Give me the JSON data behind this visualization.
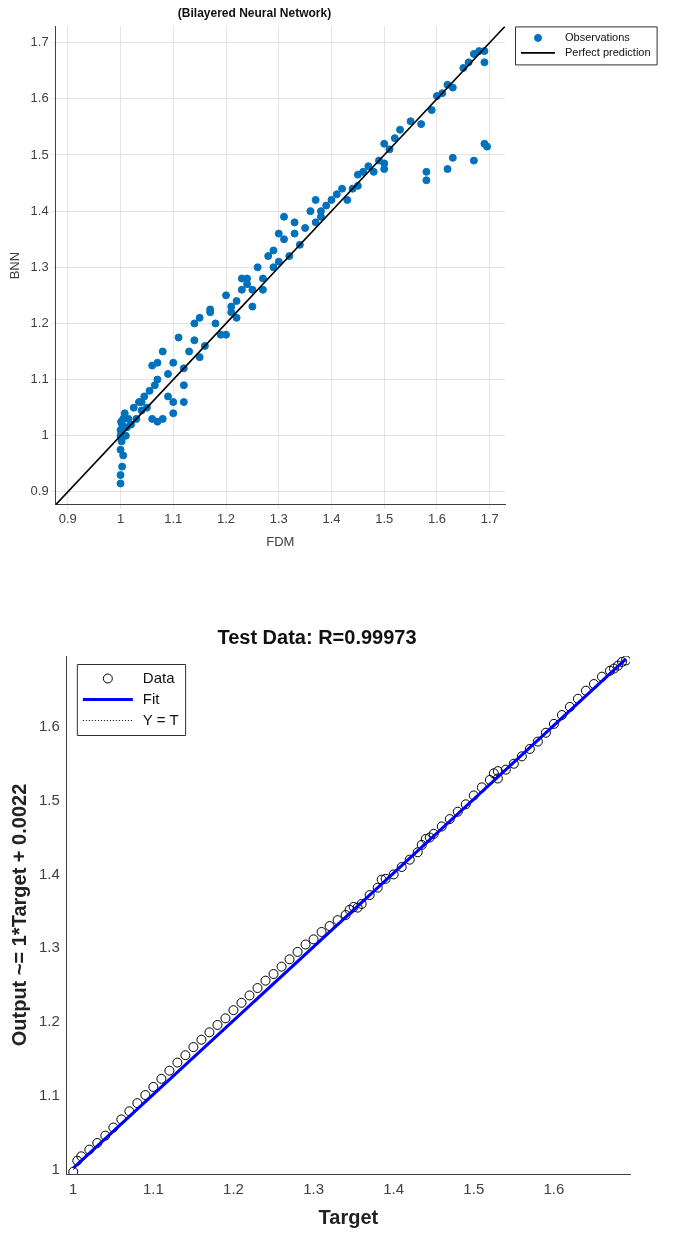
{
  "chart_data": [
    {
      "type": "scatter",
      "title": "(Bilayered Neural Network)",
      "xlabel": "FDM",
      "ylabel": "BNN",
      "xlim": [
        0.877,
        1.729
      ],
      "ylim": [
        0.877,
        1.729
      ],
      "xticks": [
        0.9,
        1,
        1.1,
        1.2,
        1.3,
        1.4,
        1.5,
        1.6,
        1.7
      ],
      "yticks": [
        0.9,
        1,
        1.1,
        1.2,
        1.3,
        1.4,
        1.5,
        1.6,
        1.7
      ],
      "grid": true,
      "legend": "top right",
      "series": [
        {
          "name": "Observations",
          "type": "scatter",
          "marker": "circle",
          "color": "#0072bd",
          "x": [
            1.0,
            1.0,
            1.003,
            1.005,
            1.0,
            1.002,
            1.0,
            1.001,
            1.003,
            1.0,
            1.005,
            1.01,
            1.008,
            1.012,
            1.015,
            1.02,
            1.025,
            1.03,
            1.035,
            1.04,
            1.045,
            1.05,
            1.055,
            1.06,
            1.065,
            1.07,
            1.06,
            1.07,
            1.08,
            1.07,
            1.08,
            1.09,
            1.1,
            1.1,
            1.11,
            1.12,
            1.13,
            1.12,
            1.14,
            1.15,
            1.16,
            1.17,
            1.18,
            1.14,
            1.15,
            1.17,
            1.19,
            1.2,
            1.21,
            1.2,
            1.22,
            1.23,
            1.24,
            1.25,
            1.22,
            1.23,
            1.25,
            1.26,
            1.27,
            1.28,
            1.29,
            1.3,
            1.27,
            1.3,
            1.31,
            1.32,
            1.33,
            1.34,
            1.31,
            1.33,
            1.35,
            1.36,
            1.37,
            1.38,
            1.37,
            1.38,
            1.39,
            1.4,
            1.41,
            1.42,
            1.43,
            1.44,
            1.45,
            1.45,
            1.46,
            1.47,
            1.48,
            1.49,
            1.5,
            1.5,
            1.5,
            1.51,
            1.52,
            1.53,
            1.55,
            1.57,
            1.58,
            1.58,
            1.59,
            1.6,
            1.61,
            1.62,
            1.62,
            1.63,
            1.63,
            1.65,
            1.66,
            1.67,
            1.67,
            1.68,
            1.69,
            1.69,
            1.69,
            1.695,
            1.1,
            1.12,
            1.04,
            1.09,
            1.29,
            1.24,
            1.21
          ],
          "values": [
            0.915,
            0.93,
            0.945,
            0.965,
            0.975,
            0.99,
            1.01,
            1.025,
            1.02,
            1.0,
            1.03,
            1.0,
            1.04,
            1.015,
            1.03,
            1.02,
            1.05,
            1.03,
            1.06,
            1.045,
            1.07,
            1.05,
            1.08,
            1.125,
            1.09,
            1.13,
            1.03,
            1.025,
            1.03,
            1.1,
            1.15,
            1.11,
            1.04,
            1.13,
            1.175,
            1.06,
            1.15,
            1.12,
            1.2,
            1.21,
            1.16,
            1.225,
            1.2,
            1.17,
            1.14,
            1.22,
            1.18,
            1.25,
            1.22,
            1.18,
            1.21,
            1.26,
            1.27,
            1.26,
            1.24,
            1.28,
            1.23,
            1.3,
            1.28,
            1.32,
            1.33,
            1.31,
            1.26,
            1.36,
            1.35,
            1.32,
            1.36,
            1.34,
            1.39,
            1.38,
            1.37,
            1.4,
            1.38,
            1.39,
            1.42,
            1.4,
            1.41,
            1.42,
            1.43,
            1.44,
            1.42,
            1.44,
            1.465,
            1.445,
            1.47,
            1.48,
            1.47,
            1.49,
            1.475,
            1.485,
            1.52,
            1.51,
            1.53,
            1.545,
            1.56,
            1.555,
            1.47,
            1.455,
            1.58,
            1.605,
            1.61,
            1.475,
            1.625,
            1.495,
            1.62,
            1.655,
            1.665,
            1.68,
            1.49,
            1.685,
            1.52,
            1.665,
            1.685,
            1.515,
            1.06,
            1.09,
            1.06,
            1.07,
            1.3,
            1.28,
            1.23
          ]
        },
        {
          "name": "Perfect prediction",
          "type": "line",
          "marker": "none",
          "line_style": "solid",
          "color": "#000000",
          "x": [
            0.877,
            1.729
          ],
          "values": [
            0.877,
            1.729
          ]
        }
      ]
    },
    {
      "type": "scatter",
      "title": "Test Data: R=0.99973",
      "xlabel": "Target",
      "ylabel": "Output ~= 1*Target + 0.0022",
      "xlim": [
        0.992,
        1.695
      ],
      "ylim": [
        0.994,
        1.696
      ],
      "xticks": [
        1,
        1.1,
        1.2,
        1.3,
        1.4,
        1.5,
        1.6
      ],
      "yticks": [
        1,
        1.1,
        1.2,
        1.3,
        1.4,
        1.5,
        1.6
      ],
      "grid": false,
      "legend": "top left",
      "series": [
        {
          "name": "Data",
          "type": "scatter",
          "marker": "circle",
          "color": "#000000",
          "x": [
            1.0,
            1.005,
            1.01,
            1.02,
            1.03,
            1.04,
            1.05,
            1.06,
            1.07,
            1.08,
            1.09,
            1.1,
            1.11,
            1.12,
            1.13,
            1.14,
            1.15,
            1.16,
            1.17,
            1.18,
            1.19,
            1.2,
            1.21,
            1.22,
            1.23,
            1.24,
            1.25,
            1.26,
            1.27,
            1.28,
            1.29,
            1.3,
            1.31,
            1.32,
            1.33,
            1.34,
            1.345,
            1.35,
            1.355,
            1.36,
            1.37,
            1.38,
            1.385,
            1.39,
            1.4,
            1.41,
            1.42,
            1.43,
            1.435,
            1.44,
            1.445,
            1.45,
            1.46,
            1.47,
            1.48,
            1.49,
            1.5,
            1.51,
            1.52,
            1.525,
            1.53,
            1.53,
            1.54,
            1.55,
            1.56,
            1.57,
            1.58,
            1.59,
            1.6,
            1.61,
            1.62,
            1.63,
            1.64,
            1.65,
            1.66,
            1.67,
            1.675,
            1.68,
            1.685,
            1.69
          ],
          "values": [
            0.997,
            1.012,
            1.018,
            1.027,
            1.036,
            1.046,
            1.057,
            1.068,
            1.079,
            1.09,
            1.101,
            1.112,
            1.123,
            1.134,
            1.145,
            1.155,
            1.166,
            1.176,
            1.186,
            1.196,
            1.205,
            1.216,
            1.226,
            1.236,
            1.246,
            1.256,
            1.265,
            1.275,
            1.285,
            1.295,
            1.305,
            1.312,
            1.322,
            1.33,
            1.338,
            1.345,
            1.352,
            1.356,
            1.355,
            1.36,
            1.372,
            1.382,
            1.393,
            1.394,
            1.4,
            1.41,
            1.42,
            1.43,
            1.44,
            1.448,
            1.45,
            1.455,
            1.465,
            1.475,
            1.485,
            1.495,
            1.507,
            1.518,
            1.528,
            1.537,
            1.54,
            1.53,
            1.542,
            1.55,
            1.56,
            1.57,
            1.58,
            1.592,
            1.604,
            1.616,
            1.627,
            1.638,
            1.649,
            1.658,
            1.668,
            1.676,
            1.679,
            1.683,
            1.688,
            1.69
          ]
        },
        {
          "name": "Fit",
          "type": "line",
          "marker": "none",
          "line_style": "solid",
          "color": "#0000ff",
          "x": [
            1.0,
            1.69
          ],
          "values": [
            1.002,
            1.692
          ]
        },
        {
          "name": "Y = T",
          "type": "line",
          "marker": "none",
          "line_style": "dotted",
          "color": "#000000",
          "x": [
            1.0,
            1.69
          ],
          "values": [
            1.0,
            1.69
          ]
        }
      ]
    }
  ]
}
